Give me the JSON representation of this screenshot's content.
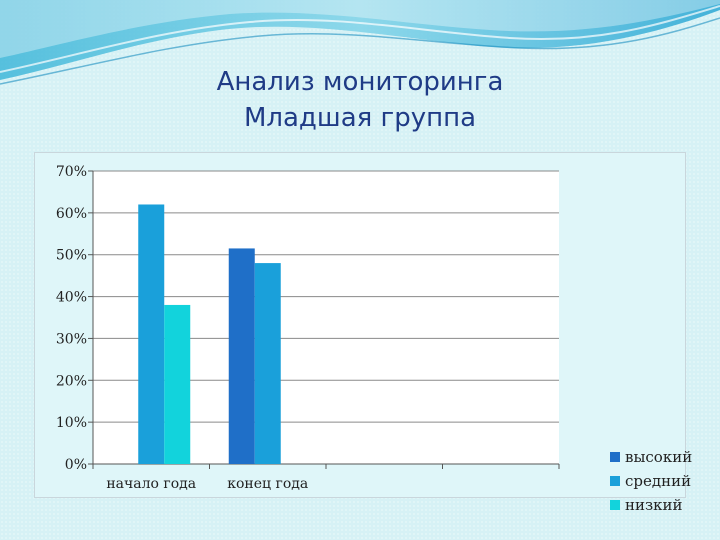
{
  "slide": {
    "title_line1": "Анализ мониторинга",
    "title_line2": "Младшая группа"
  },
  "chart_data": {
    "type": "bar",
    "categories": [
      "начало года",
      "конец года",
      "",
      ""
    ],
    "series": [
      {
        "name": "высокий",
        "color": "#1f6fc8",
        "values": [
          0,
          51.5,
          0,
          0
        ]
      },
      {
        "name": "средний",
        "color": "#1aa0da",
        "values": [
          62,
          48,
          0,
          0
        ]
      },
      {
        "name": "низкий",
        "color": "#12d3dc",
        "values": [
          38,
          0,
          0,
          0
        ]
      }
    ],
    "y_ticks": [
      "0%",
      "10%",
      "20%",
      "30%",
      "40%",
      "50%",
      "60%",
      "70%"
    ],
    "ylim": [
      0,
      70
    ],
    "grid": true,
    "legend_position": "right"
  }
}
